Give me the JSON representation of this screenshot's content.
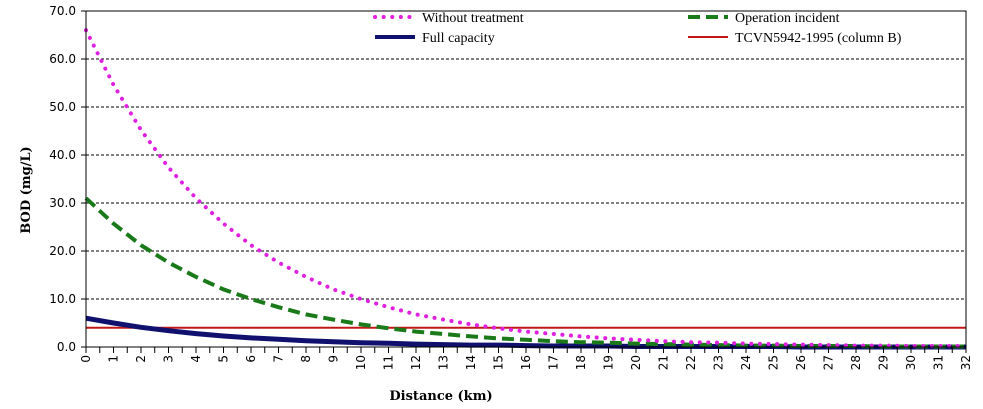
{
  "chart_data": {
    "type": "line",
    "title": "",
    "xlabel": "Distance (km)",
    "ylabel": "BOD (mg/L)",
    "xlim": [
      0,
      32
    ],
    "ylim": [
      0,
      70
    ],
    "yticks": [
      "0.0",
      "10.0",
      "20.0",
      "30.0",
      "40.0",
      "50.0",
      "60.0",
      "70.0"
    ],
    "xticks": [
      "0",
      "1",
      "2",
      "3",
      "4",
      "5",
      "6",
      "7",
      "8",
      "9",
      "10",
      "11",
      "12",
      "13",
      "14",
      "15",
      "16",
      "17",
      "18",
      "19",
      "20",
      "21",
      "22",
      "23",
      "24",
      "25",
      "26",
      "27",
      "28",
      "29",
      "30",
      "31",
      "32"
    ],
    "grid": "horizontal dashed",
    "legend_placement": "top",
    "x": [
      0,
      1,
      2,
      3,
      4,
      5,
      6,
      7,
      8,
      9,
      10,
      11,
      12,
      13,
      14,
      15,
      16,
      17,
      18,
      19,
      20,
      21,
      22,
      23,
      24,
      25,
      26,
      27,
      28,
      29,
      30,
      31,
      32
    ],
    "series": [
      {
        "name": "Without treatment",
        "color": "#e020e0",
        "style": "dotted",
        "values": [
          66.0,
          54.6,
          45.2,
          37.4,
          31.0,
          25.7,
          21.2,
          17.6,
          14.6,
          12.0,
          10.0,
          8.3,
          6.8,
          5.7,
          4.7,
          3.9,
          3.2,
          2.7,
          2.2,
          1.8,
          1.5,
          1.2,
          1.0,
          0.9,
          0.7,
          0.6,
          0.5,
          0.4,
          0.3,
          0.3,
          0.2,
          0.2,
          0.2
        ]
      },
      {
        "name": "Operation incident",
        "color": "#1a7a1a",
        "style": "dashed",
        "values": [
          31.0,
          25.7,
          21.2,
          17.6,
          14.6,
          12.0,
          10.0,
          8.3,
          6.8,
          5.7,
          4.7,
          3.9,
          3.2,
          2.7,
          2.2,
          1.8,
          1.5,
          1.2,
          1.0,
          0.9,
          0.7,
          0.6,
          0.5,
          0.4,
          0.3,
          0.3,
          0.2,
          0.2,
          0.2,
          0.1,
          0.1,
          0.1,
          0.1
        ]
      },
      {
        "name": "Full capacity",
        "color": "#10106e",
        "style": "solid-thick",
        "values": [
          6.0,
          5.0,
          4.1,
          3.4,
          2.8,
          2.3,
          1.9,
          1.6,
          1.3,
          1.1,
          0.9,
          0.8,
          0.6,
          0.5,
          0.4,
          0.4,
          0.3,
          0.2,
          0.2,
          0.2,
          0.1,
          0.1,
          0.1,
          0.1,
          0.1,
          0.1,
          0.0,
          0.0,
          0.0,
          0.0,
          0.0,
          0.0,
          0.0
        ]
      },
      {
        "name": "TCVN5942-1995 (column B)",
        "color": "#c01818",
        "style": "solid",
        "values": [
          4,
          4,
          4,
          4,
          4,
          4,
          4,
          4,
          4,
          4,
          4,
          4,
          4,
          4,
          4,
          4,
          4,
          4,
          4,
          4,
          4,
          4,
          4,
          4,
          4,
          4,
          4,
          4,
          4,
          4,
          4,
          4,
          4
        ]
      }
    ]
  }
}
